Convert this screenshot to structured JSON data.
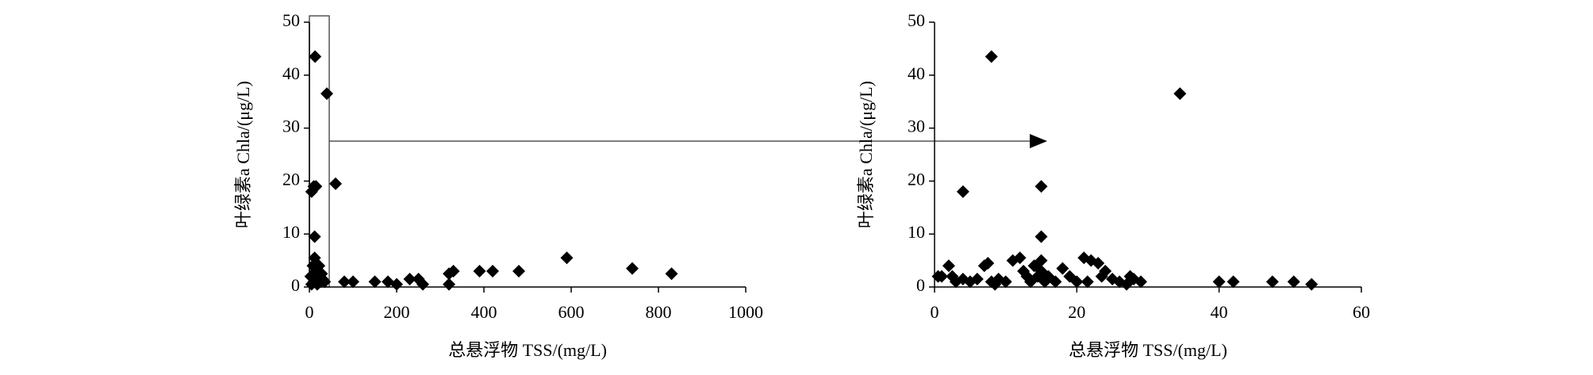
{
  "chart_data": [
    {
      "type": "scatter",
      "x_label": "总悬浮物 TSS/(mg/L)",
      "y_label": "叶绿素a  Chla/(μg/L)",
      "color": "#000000",
      "xlim": [
        0,
        1000
      ],
      "xticks": [
        0,
        200,
        400,
        600,
        800,
        1000
      ],
      "ylim": [
        0,
        50
      ],
      "yticks": [
        0,
        10,
        20,
        30,
        40,
        50
      ],
      "x": [
        13,
        40,
        10,
        15,
        60,
        5,
        12,
        3,
        8,
        12,
        15,
        20,
        25,
        30,
        10,
        18,
        22,
        35,
        5,
        28,
        80,
        100,
        150,
        180,
        200,
        230,
        250,
        260,
        320,
        330,
        320,
        390,
        420,
        480,
        590,
        740,
        830
      ],
      "y": [
        43.5,
        36.5,
        19,
        19,
        19.5,
        18,
        9.5,
        2,
        4,
        5.5,
        3,
        2,
        1,
        1.5,
        1,
        0.5,
        4,
        1,
        0.5,
        2.5,
        1,
        1,
        1,
        1,
        0.5,
        1.5,
        1.5,
        0.5,
        2.5,
        3,
        0.5,
        3,
        3,
        3,
        5.5,
        3.5,
        2.5
      ]
    },
    {
      "type": "scatter",
      "x_label": "总悬浮物 TSS/(mg/L)",
      "y_label": "叶绿素a  Chla/(μg/L)",
      "color": "#000000",
      "xlim": [
        0,
        60
      ],
      "xticks": [
        0,
        20,
        40,
        60
      ],
      "ylim": [
        0,
        50
      ],
      "yticks": [
        0,
        10,
        20,
        30,
        40,
        50
      ],
      "x": [
        8,
        34.5,
        4,
        15,
        15,
        0.5,
        1,
        2,
        2.5,
        3,
        4,
        5,
        6,
        7,
        7.5,
        8,
        8.5,
        9,
        10,
        11,
        12,
        12.5,
        13,
        13.5,
        14,
        14.5,
        15,
        15,
        15.5,
        16,
        17,
        18,
        19,
        20,
        21,
        21.5,
        22,
        23,
        23.5,
        24,
        25,
        26,
        27,
        27.5,
        28,
        29,
        40,
        42,
        47.5,
        50.5,
        53
      ],
      "y": [
        43.5,
        36.5,
        18,
        19,
        9.5,
        2,
        2,
        4,
        2,
        1,
        1.5,
        1,
        1.5,
        4,
        4.5,
        1,
        0.5,
        1.5,
        1,
        5,
        5.5,
        3,
        2,
        1,
        4,
        2,
        5,
        3,
        1,
        2,
        1,
        3.5,
        2,
        1,
        5.5,
        1,
        5,
        4.5,
        2,
        3,
        1.5,
        1,
        0.5,
        2,
        1.5,
        1,
        1,
        1,
        1,
        1,
        0.5
      ]
    }
  ]
}
